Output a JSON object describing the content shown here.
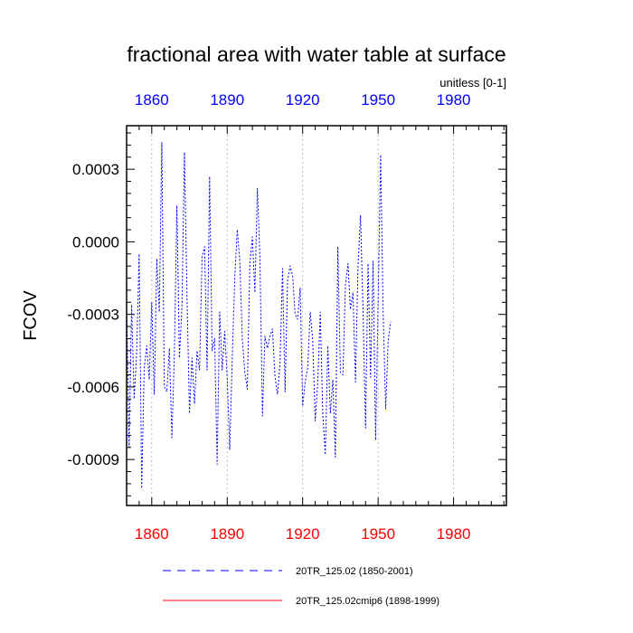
{
  "chart_data": {
    "type": "line",
    "title": "fractional area with water table at surface",
    "units": "unitless [0-1]",
    "ylabel": "FCOV",
    "xlabel": "",
    "xlim": [
      1850,
      2001
    ],
    "ylim": [
      -0.00109,
      0.00048
    ],
    "grid": "vertical dotted at major x ticks",
    "x_ticks": [
      1860,
      1890,
      1920,
      1950,
      1980
    ],
    "x_tick_labels": [
      "1860",
      "1890",
      "1920",
      "1950",
      "1980"
    ],
    "y_ticks": [
      0.0003,
      0.0,
      -0.0003,
      -0.0006,
      -0.0009
    ],
    "y_tick_labels": [
      "0.0003",
      "0.0000",
      "-0.0003",
      "-0.0006",
      "-0.0009"
    ],
    "colors": {
      "series1": "#0000ff",
      "series2": "#ff0000",
      "top_axis": "#0000ff",
      "bottom_axis": "#ff0000"
    },
    "legend": {
      "placement": "bottom"
    },
    "series": [
      {
        "name": "20TR_125.02 (1850-2001)",
        "style": "dashed",
        "color": "#0000ff",
        "x_start": 1850,
        "values": [
          -0.00025,
          -0.00085,
          -0.00026,
          -0.00065,
          -0.00046,
          -5e-05,
          -0.00102,
          -0.00052,
          -0.00043,
          -0.00057,
          -0.00025,
          -0.00063,
          -7e-05,
          -0.00029,
          0.00041,
          -0.0006,
          -0.00062,
          -0.00044,
          -0.00081,
          -0.00046,
          0.00015,
          -0.00048,
          -0.00027,
          0.00037,
          -0.00021,
          -0.00071,
          -0.00048,
          -0.00067,
          -0.00045,
          -0.00053,
          -6e-05,
          -2e-05,
          -0.00053,
          0.00027,
          -0.00045,
          -0.0004,
          -0.00092,
          -0.00029,
          -0.00053,
          -0.00037,
          -0.00056,
          -0.00086,
          -0.00048,
          -0.00015,
          5e-05,
          -8e-05,
          -0.0004,
          -0.00054,
          -0.00061,
          -9e-05,
          2e-05,
          -0.00021,
          0.00022,
          -6e-05,
          -0.00072,
          -0.00039,
          -0.00044,
          -0.00039,
          -0.00036,
          -0.00056,
          -0.00063,
          -0.0005,
          -0.00011,
          -0.00062,
          -0.00016,
          -0.0001,
          -0.00014,
          -0.0003,
          -0.00032,
          -0.00019,
          -0.00068,
          -0.00058,
          -0.00052,
          -0.00029,
          -0.00041,
          -0.00074,
          -0.00058,
          -0.00029,
          -0.00071,
          -0.00088,
          -0.00043,
          -0.00071,
          -0.00057,
          -0.00089,
          -2e-05,
          -0.00054,
          -0.00055,
          -0.00018,
          -9e-05,
          -0.00028,
          -0.00021,
          -0.00058,
          -0.0001,
          0.00011,
          -0.00028,
          -0.00077,
          -9e-05,
          -0.00056,
          -8e-05,
          -0.00082,
          -0.00025,
          0.00036,
          -0.00029,
          -0.00069,
          -0.00041,
          -0.00033
        ]
      },
      {
        "name": "20TR_125.02cmip6 (1898-1999)",
        "style": "solid",
        "color": "#ff0000",
        "x_start": 1898,
        "values": []
      }
    ]
  }
}
